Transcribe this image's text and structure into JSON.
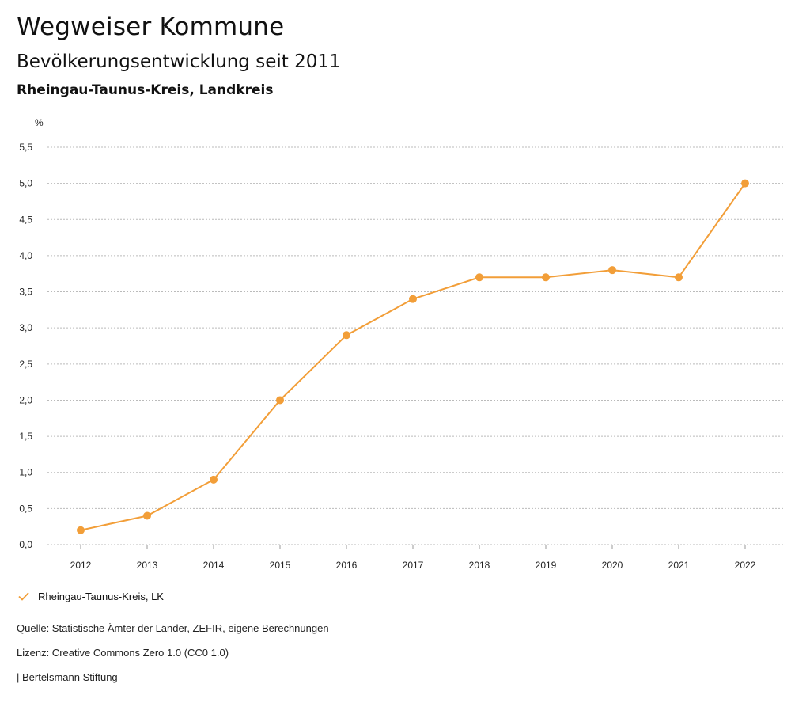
{
  "header": {
    "title": "Wegweiser Kommune",
    "subtitle": "Bevölkerungsentwicklung seit 2011",
    "region": "Rheingau-Taunus-Kreis, Landkreis"
  },
  "chart_data": {
    "type": "line",
    "ylabel": "%",
    "categories": [
      "2012",
      "2013",
      "2014",
      "2015",
      "2016",
      "2017",
      "2018",
      "2019",
      "2020",
      "2021",
      "2022"
    ],
    "series": [
      {
        "name": "Rheingau-Taunus-Kreis, LK",
        "values": [
          0.2,
          0.4,
          0.9,
          2.0,
          2.9,
          3.4,
          3.7,
          3.7,
          3.8,
          3.7,
          5.0
        ]
      }
    ],
    "ylim": [
      0,
      5.5
    ],
    "yticks": [
      "0,0",
      "0,5",
      "1,0",
      "1,5",
      "2,0",
      "2,5",
      "3,0",
      "3,5",
      "4,0",
      "4,5",
      "5,0",
      "5,5"
    ],
    "ytick_values": [
      0,
      0.5,
      1.0,
      1.5,
      2.0,
      2.5,
      3.0,
      3.5,
      4.0,
      4.5,
      5.0,
      5.5
    ],
    "grid": true,
    "line_color": "#f29e38",
    "legend_position": "bottom-left"
  },
  "footer": {
    "source": "Quelle: Statistische Ämter der Länder, ZEFIR, eigene Berechnungen",
    "license": "Lizenz: Creative Commons Zero 1.0 (CC0 1.0)",
    "publisher": "| Bertelsmann Stiftung"
  }
}
